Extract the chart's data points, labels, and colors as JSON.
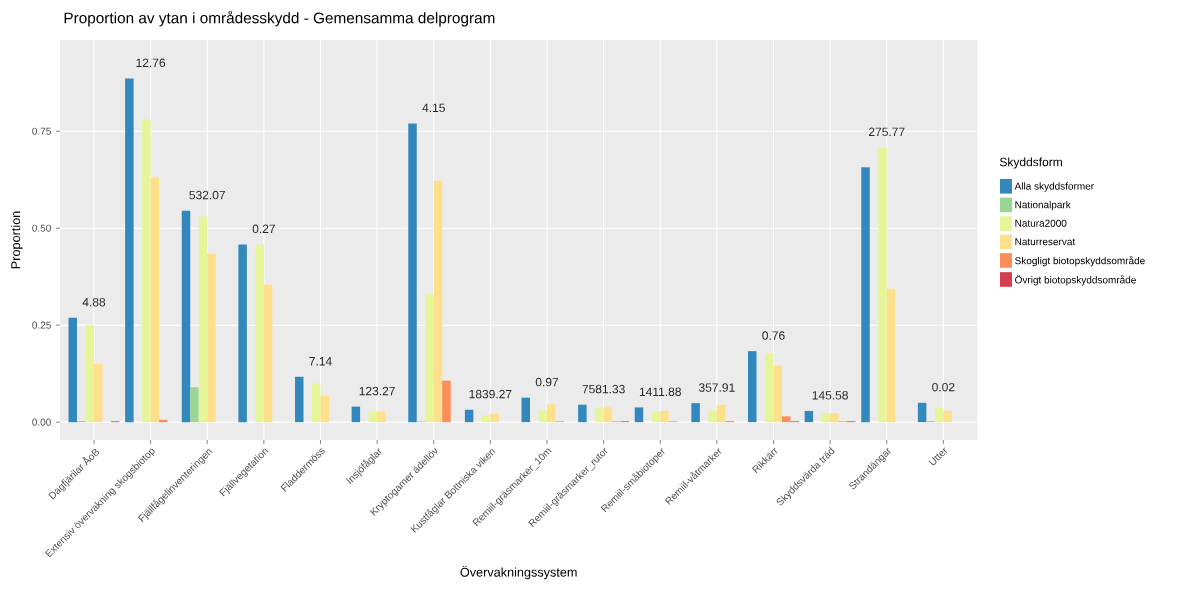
{
  "chart_data": {
    "type": "bar",
    "title": "Proportion av ytan i områdesskydd - Gemensamma delprogram",
    "xlabel": "Övervakningssystem",
    "ylabel": "Proportion",
    "legend_title": "Skyddsform",
    "categories": [
      "Dagfjärilar ÅoB",
      "Extensiv övervakning skogsbiotop",
      "Fjällfågelinventeringen",
      "Fjällvegetation",
      "Fladdermöss",
      "Insjöfåglar",
      "Kryptogamer ädellöv",
      "Kustfåglar Bottniska viken",
      "Remiil-gräsmarker_10m",
      "Remiil-gräsmarker_rutor",
      "Remiil-småbiotoper",
      "Remiil-våtmarker",
      "Rikkärr",
      "Skyddsvärda träd",
      "Strandängar",
      "Utter"
    ],
    "series": [
      {
        "name": "Alla skyddsformer",
        "color": "#3288bd",
        "values": [
          0.269,
          0.886,
          0.545,
          0.458,
          0.117,
          0.04,
          0.77,
          0.032,
          0.063,
          0.045,
          0.038,
          0.049,
          0.183,
          0.029,
          0.657,
          0.05
        ]
      },
      {
        "name": "Nationalpark",
        "color": "#99d594",
        "values": [
          0.003,
          0,
          0.09,
          0,
          0,
          0,
          0.002,
          0,
          0,
          0,
          0,
          0,
          0,
          0,
          0,
          0.003
        ]
      },
      {
        "name": "Natura2000",
        "color": "#e6f598",
        "values": [
          0.25,
          0.78,
          0.53,
          0.458,
          0.1,
          0.027,
          0.33,
          0.018,
          0.03,
          0.036,
          0.026,
          0.03,
          0.177,
          0.023,
          0.708,
          0.036
        ]
      },
      {
        "name": "Naturreservat",
        "color": "#fee08b",
        "values": [
          0.15,
          0.63,
          0.434,
          0.355,
          0.068,
          0.027,
          0.622,
          0.022,
          0.046,
          0.038,
          0.029,
          0.045,
          0.146,
          0.023,
          0.344,
          0.029
        ]
      },
      {
        "name": "Skogligt biotopskyddsområde",
        "color": "#fc8d59",
        "values": [
          0,
          0.006,
          0,
          0,
          0,
          0,
          0.107,
          0,
          0.002,
          0.002,
          0.002,
          0.003,
          0.015,
          0.002,
          0,
          0
        ]
      },
      {
        "name": "Övrigt biotopskyddsområde",
        "color": "#d53e4f",
        "values": [
          0.002,
          0,
          0,
          0,
          0,
          0,
          0,
          0,
          0,
          0.002,
          0,
          0,
          0.002,
          0.002,
          0,
          0
        ]
      }
    ],
    "annotations": [
      "4.88",
      "12.76",
      "532.07",
      "0.27",
      "7.14",
      "123.27",
      "4.15",
      "1839.27",
      "0.97",
      "7581.33",
      "1411.88",
      "357.91",
      "0.76",
      "145.58",
      "275.77",
      "0.02"
    ],
    "ylim": [
      -0.046,
      0.985
    ],
    "yticks": [
      {
        "value": 0,
        "label": "0.00"
      },
      {
        "value": 0.25,
        "label": "0.25"
      },
      {
        "value": 0.5,
        "label": "0.50"
      },
      {
        "value": 0.75,
        "label": "0.75"
      }
    ],
    "grid": true,
    "legend": "right"
  }
}
